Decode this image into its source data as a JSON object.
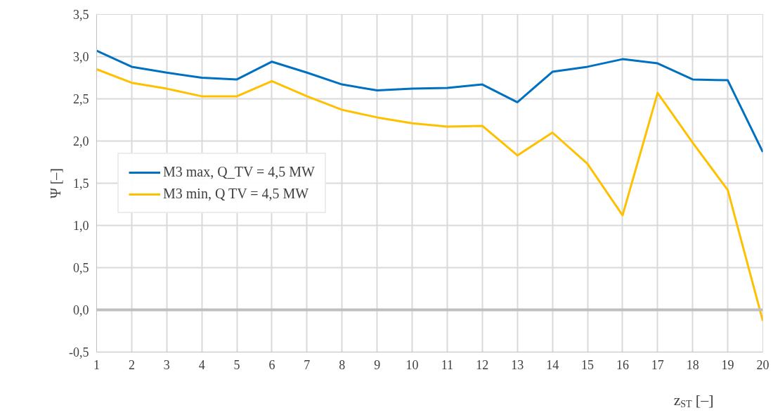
{
  "chart_data": {
    "type": "line",
    "xlabel": "z$_{ST}$ [–]",
    "ylabel": "Ψ [–]",
    "x": [
      1,
      2,
      3,
      4,
      5,
      6,
      7,
      8,
      9,
      10,
      11,
      12,
      13,
      14,
      15,
      16,
      17,
      18,
      19,
      20
    ],
    "xlim": [
      1,
      20
    ],
    "xticks": [
      1,
      2,
      3,
      4,
      5,
      6,
      7,
      8,
      9,
      10,
      11,
      12,
      13,
      14,
      15,
      16,
      17,
      18,
      19,
      20
    ],
    "ylim": [
      -0.5,
      3.5
    ],
    "yticks": [
      {
        "value": -0.5,
        "label": "-0,5"
      },
      {
        "value": 0,
        "label": "0,0"
      },
      {
        "value": 0.5,
        "label": "0,5"
      },
      {
        "value": 1,
        "label": "1,0"
      },
      {
        "value": 1.5,
        "label": "1,5"
      },
      {
        "value": 2,
        "label": "2,0"
      },
      {
        "value": 2.5,
        "label": "2,5"
      },
      {
        "value": 3,
        "label": "3,0"
      },
      {
        "value": 3.5,
        "label": "3,5"
      }
    ],
    "series": [
      {
        "name": "M3 max, Q_TV = 4,5 MW",
        "color": "#0070c0",
        "values": [
          3.07,
          2.88,
          2.81,
          2.75,
          2.73,
          2.94,
          2.81,
          2.67,
          2.6,
          2.62,
          2.63,
          2.67,
          2.46,
          2.82,
          2.88,
          2.97,
          2.92,
          2.73,
          2.72,
          1.87
        ]
      },
      {
        "name": "M3 min, Q TV = 4,5 MW",
        "color": "#ffc000",
        "values": [
          2.85,
          2.69,
          2.62,
          2.53,
          2.53,
          2.71,
          2.53,
          2.37,
          2.28,
          2.21,
          2.17,
          2.18,
          1.83,
          2.1,
          1.73,
          1.12,
          2.57,
          1.98,
          1.42,
          -0.13
        ]
      }
    ],
    "ref_lines": [
      {
        "axis": "y",
        "value": 0,
        "color": "#bfbfbf"
      }
    ],
    "grid": true,
    "legend": "left",
    "line_style": "solid",
    "marker": "none"
  }
}
